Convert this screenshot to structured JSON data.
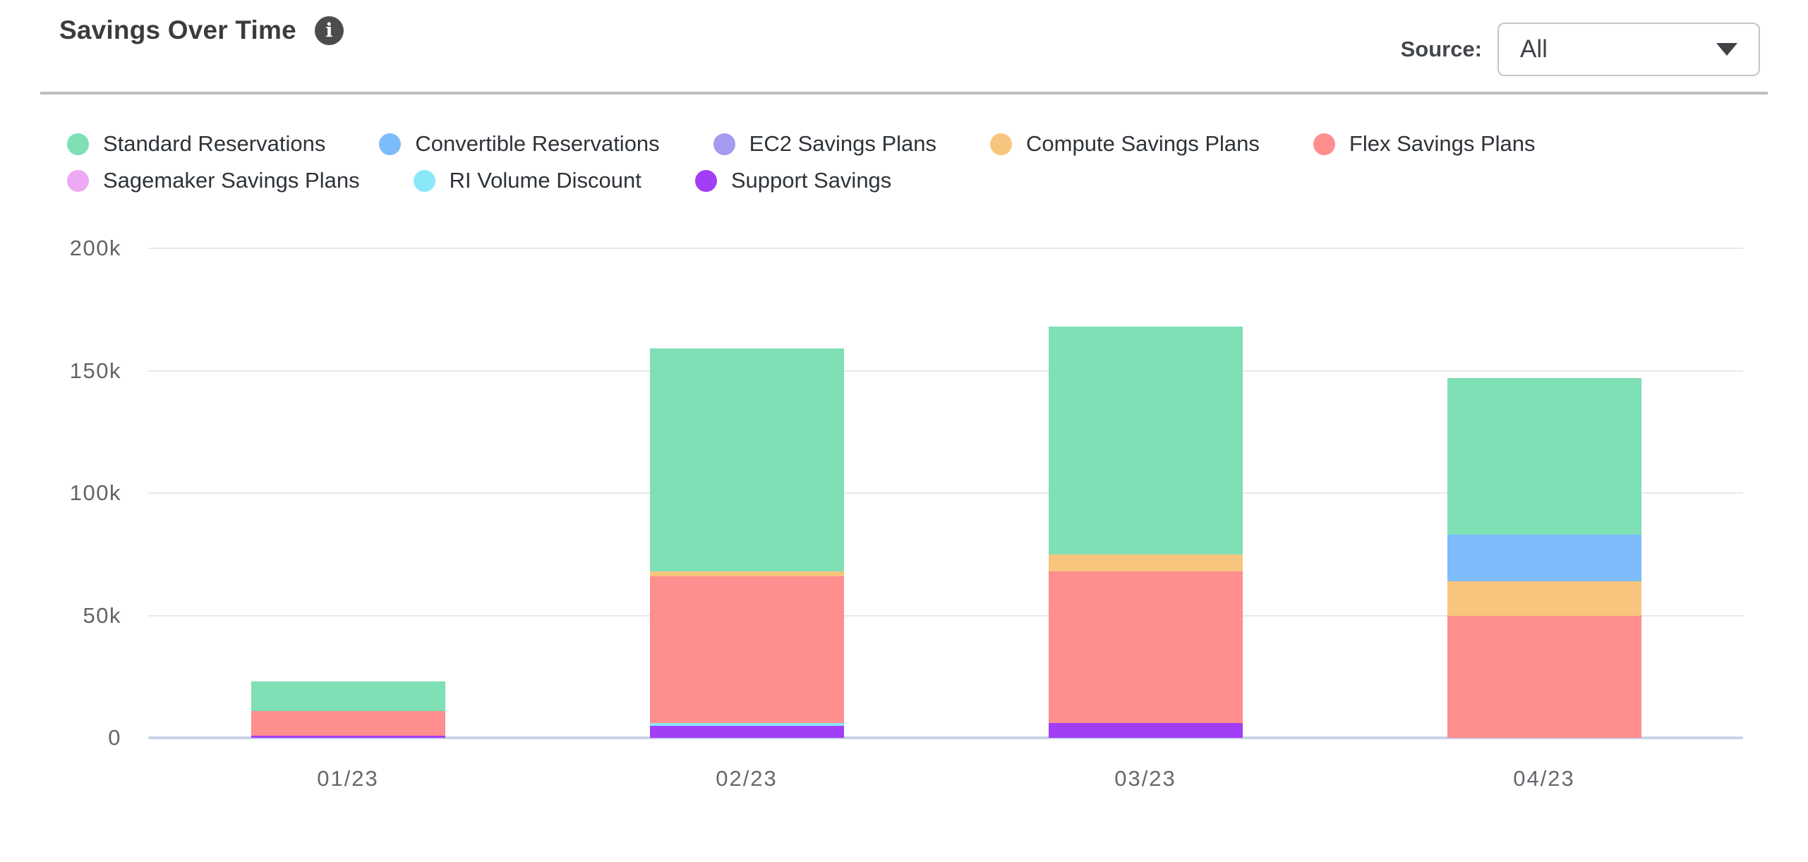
{
  "header": {
    "title": "Savings Over Time",
    "info_icon_glyph": "i"
  },
  "source": {
    "label": "Source:",
    "value": "All"
  },
  "chart_data": {
    "type": "bar",
    "stacked": true,
    "title": "Savings Over Time",
    "categories": [
      "01/23",
      "02/23",
      "03/23",
      "04/23"
    ],
    "value_unit": "thousands",
    "ylim": [
      0,
      200000
    ],
    "grid": true,
    "legend_position": "top",
    "y_ticks": [
      {
        "label": "200k",
        "value": 200
      },
      {
        "label": "150k",
        "value": 150
      },
      {
        "label": "100k",
        "value": 100
      },
      {
        "label": "50k",
        "value": 50
      },
      {
        "label": "0",
        "value": 0
      }
    ],
    "series": [
      {
        "name": "Standard Reservations",
        "color": "#7fdfb5",
        "values": [
          12,
          91,
          93,
          64
        ]
      },
      {
        "name": "Convertible Reservations",
        "color": "#7cbcfb",
        "values": [
          0,
          0,
          0,
          19
        ]
      },
      {
        "name": "EC2 Savings Plans",
        "color": "#a49bf0",
        "values": [
          0,
          0,
          0,
          0
        ]
      },
      {
        "name": "Compute Savings Plans",
        "color": "#f7c57d",
        "values": [
          0,
          2,
          7,
          14
        ]
      },
      {
        "name": "Flex Savings Plans",
        "color": "#ff8e8e",
        "values": [
          10,
          60,
          62,
          50
        ]
      },
      {
        "name": "Sagemaker Savings Plans",
        "color": "#eda9f4",
        "values": [
          0,
          0,
          0,
          0
        ]
      },
      {
        "name": "RI Volume Discount",
        "color": "#8ae7f8",
        "values": [
          0,
          1,
          0,
          0
        ]
      },
      {
        "name": "Support Savings",
        "color": "#a23ef6",
        "values": [
          1,
          5,
          6,
          0
        ]
      }
    ],
    "stack_order_bottom_to_top": [
      "Support Savings",
      "RI Volume Discount",
      "Sagemaker Savings Plans",
      "Flex Savings Plans",
      "Compute Savings Plans",
      "EC2 Savings Plans",
      "Convertible Reservations",
      "Standard Reservations"
    ],
    "totals": [
      23,
      159,
      168,
      147
    ]
  }
}
